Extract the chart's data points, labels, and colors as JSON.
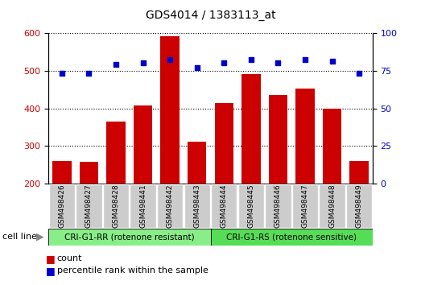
{
  "title": "GDS4014 / 1383113_at",
  "samples": [
    "GSM498426",
    "GSM498427",
    "GSM498428",
    "GSM498441",
    "GSM498442",
    "GSM498443",
    "GSM498444",
    "GSM498445",
    "GSM498446",
    "GSM498447",
    "GSM498448",
    "GSM498449"
  ],
  "counts": [
    260,
    258,
    365,
    408,
    590,
    312,
    413,
    490,
    435,
    453,
    400,
    260
  ],
  "percentile_ranks": [
    73,
    73,
    79,
    80,
    82,
    77,
    80,
    82,
    80,
    82,
    81,
    73
  ],
  "ylim_left": [
    200,
    600
  ],
  "ylim_right": [
    0,
    100
  ],
  "yticks_left": [
    200,
    300,
    400,
    500,
    600
  ],
  "yticks_right": [
    0,
    25,
    50,
    75,
    100
  ],
  "bar_color": "#cc0000",
  "dot_color": "#0000cc",
  "group1_label": "CRI-G1-RR (rotenone resistant)",
  "group2_label": "CRI-G1-RS (rotenone sensitive)",
  "group1_color": "#88ee88",
  "group2_color": "#55dd55",
  "group1_indices": [
    0,
    1,
    2,
    3,
    4,
    5
  ],
  "group2_indices": [
    6,
    7,
    8,
    9,
    10,
    11
  ],
  "cell_line_label": "cell line",
  "legend_count_label": "count",
  "legend_pct_label": "percentile rank within the sample",
  "grid_color": "#000000",
  "axis_label_color_left": "#cc0000",
  "axis_label_color_right": "#0000cc",
  "bg_color": "#ffffff",
  "tick_box_color": "#cccccc"
}
